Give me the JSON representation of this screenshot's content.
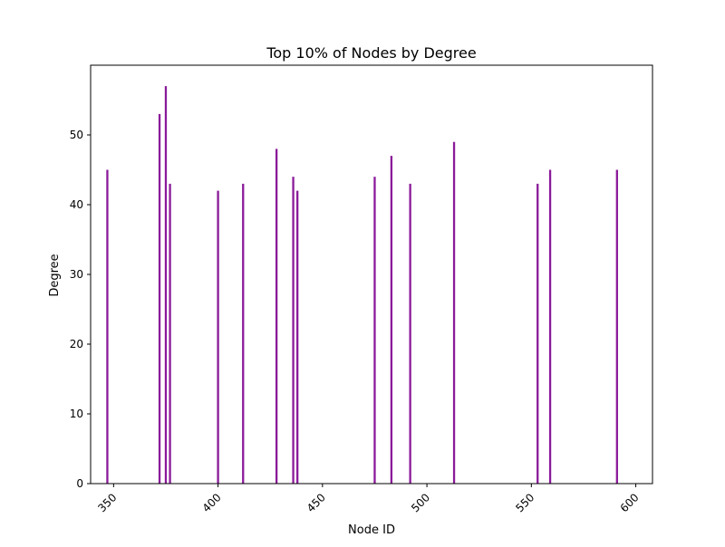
{
  "chart_data": {
    "type": "bar",
    "title": "Top 10% of Nodes by Degree",
    "xlabel": "Node ID",
    "ylabel": "Degree",
    "xlim": [
      339,
      608
    ],
    "ylim": [
      0,
      60
    ],
    "xticks": [
      350,
      400,
      450,
      500,
      550,
      600
    ],
    "yticks": [
      0,
      10,
      20,
      30,
      40,
      50
    ],
    "grid": false,
    "bar_color": "#8B1A9A",
    "x": [
      347,
      372,
      375,
      377,
      400,
      412,
      428,
      436,
      438,
      475,
      483,
      492,
      513,
      553,
      559,
      591
    ],
    "values": [
      45,
      53,
      57,
      43,
      42,
      43,
      48,
      44,
      42,
      44,
      47,
      43,
      49,
      43,
      45,
      45
    ]
  }
}
